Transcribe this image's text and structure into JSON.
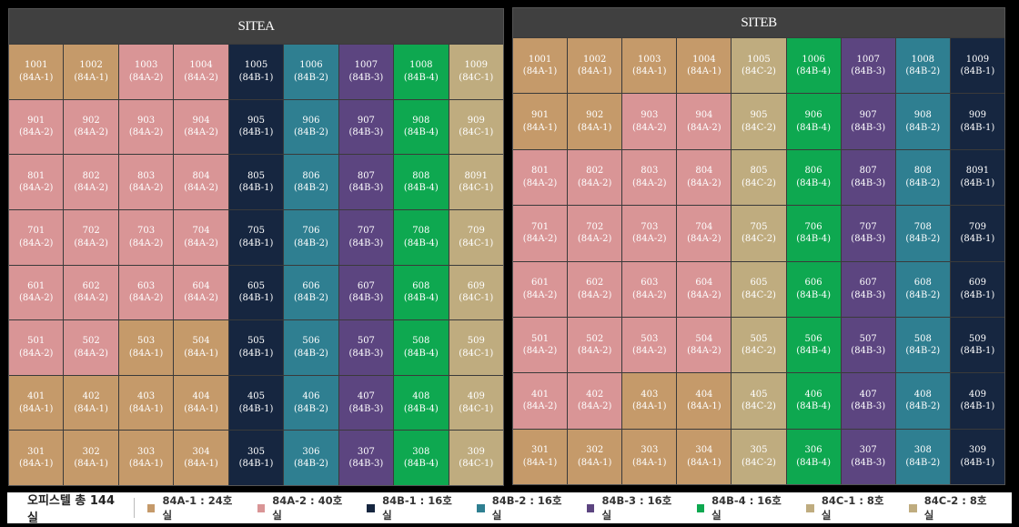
{
  "types": {
    "84A-1": "#c59a6a",
    "84A-2": "#d99596",
    "84B-1": "#162640",
    "84B-2": "#2f7f91",
    "84B-3": "#5c4580",
    "84B-4": "#0ea850",
    "84C-1": "#bfac7f",
    "84C-2": "#bfac7f"
  },
  "siteA": {
    "title": "SITEA",
    "rows": [
      [
        [
          "1001",
          "84A-1"
        ],
        [
          "1002",
          "84A-1"
        ],
        [
          "1003",
          "84A-2"
        ],
        [
          "1004",
          "84A-2"
        ],
        [
          "1005",
          "84B-1"
        ],
        [
          "1006",
          "84B-2"
        ],
        [
          "1007",
          "84B-3"
        ],
        [
          "1008",
          "84B-4"
        ],
        [
          "1009",
          "84C-1"
        ]
      ],
      [
        [
          "901",
          "84A-2"
        ],
        [
          "902",
          "84A-2"
        ],
        [
          "903",
          "84A-2"
        ],
        [
          "904",
          "84A-2"
        ],
        [
          "905",
          "84B-1"
        ],
        [
          "906",
          "84B-2"
        ],
        [
          "907",
          "84B-3"
        ],
        [
          "908",
          "84B-4"
        ],
        [
          "909",
          "84C-1"
        ]
      ],
      [
        [
          "801",
          "84A-2"
        ],
        [
          "802",
          "84A-2"
        ],
        [
          "803",
          "84A-2"
        ],
        [
          "804",
          "84A-2"
        ],
        [
          "805",
          "84B-1"
        ],
        [
          "806",
          "84B-2"
        ],
        [
          "807",
          "84B-3"
        ],
        [
          "808",
          "84B-4"
        ],
        [
          "8091",
          "84C-1"
        ]
      ],
      [
        [
          "701",
          "84A-2"
        ],
        [
          "702",
          "84A-2"
        ],
        [
          "703",
          "84A-2"
        ],
        [
          "704",
          "84A-2"
        ],
        [
          "705",
          "84B-1"
        ],
        [
          "706",
          "84B-2"
        ],
        [
          "707",
          "84B-3"
        ],
        [
          "708",
          "84B-4"
        ],
        [
          "709",
          "84C-1"
        ]
      ],
      [
        [
          "601",
          "84A-2"
        ],
        [
          "602",
          "84A-2"
        ],
        [
          "603",
          "84A-2"
        ],
        [
          "604",
          "84A-2"
        ],
        [
          "605",
          "84B-1"
        ],
        [
          "606",
          "84B-2"
        ],
        [
          "607",
          "84B-3"
        ],
        [
          "608",
          "84B-4"
        ],
        [
          "609",
          "84C-1"
        ]
      ],
      [
        [
          "501",
          "84A-2"
        ],
        [
          "502",
          "84A-2"
        ],
        [
          "503",
          "84A-1"
        ],
        [
          "504",
          "84A-1"
        ],
        [
          "505",
          "84B-1"
        ],
        [
          "506",
          "84B-2"
        ],
        [
          "507",
          "84B-3"
        ],
        [
          "508",
          "84B-4"
        ],
        [
          "509",
          "84C-1"
        ]
      ],
      [
        [
          "401",
          "84A-1"
        ],
        [
          "402",
          "84A-1"
        ],
        [
          "403",
          "84A-1"
        ],
        [
          "404",
          "84A-1"
        ],
        [
          "405",
          "84B-1"
        ],
        [
          "406",
          "84B-2"
        ],
        [
          "407",
          "84B-3"
        ],
        [
          "408",
          "84B-4"
        ],
        [
          "409",
          "84C-1"
        ]
      ],
      [
        [
          "301",
          "84A-1"
        ],
        [
          "302",
          "84A-1"
        ],
        [
          "303",
          "84A-1"
        ],
        [
          "304",
          "84A-1"
        ],
        [
          "305",
          "84B-1"
        ],
        [
          "306",
          "84B-2"
        ],
        [
          "307",
          "84B-3"
        ],
        [
          "308",
          "84B-4"
        ],
        [
          "309",
          "84C-1"
        ]
      ]
    ]
  },
  "siteB": {
    "title": "SITEB",
    "rows": [
      [
        [
          "1001",
          "84A-1"
        ],
        [
          "1002",
          "84A-1"
        ],
        [
          "1003",
          "84A-1"
        ],
        [
          "1004",
          "84A-1"
        ],
        [
          "1005",
          "84C-2"
        ],
        [
          "1006",
          "84B-4"
        ],
        [
          "1007",
          "84B-3"
        ],
        [
          "1008",
          "84B-2"
        ],
        [
          "1009",
          "84B-1"
        ]
      ],
      [
        [
          "901",
          "84A-1"
        ],
        [
          "902",
          "84A-1"
        ],
        [
          "903",
          "84A-2"
        ],
        [
          "904",
          "84A-2"
        ],
        [
          "905",
          "84C-2"
        ],
        [
          "906",
          "84B-4"
        ],
        [
          "907",
          "84B-3"
        ],
        [
          "908",
          "84B-2"
        ],
        [
          "909",
          "84B-1"
        ]
      ],
      [
        [
          "801",
          "84A-2"
        ],
        [
          "802",
          "84A-2"
        ],
        [
          "803",
          "84A-2"
        ],
        [
          "804",
          "84A-2"
        ],
        [
          "805",
          "84C-2"
        ],
        [
          "806",
          "84B-4"
        ],
        [
          "807",
          "84B-3"
        ],
        [
          "808",
          "84B-2"
        ],
        [
          "8091",
          "84B-1"
        ]
      ],
      [
        [
          "701",
          "84A-2"
        ],
        [
          "702",
          "84A-2"
        ],
        [
          "703",
          "84A-2"
        ],
        [
          "704",
          "84A-2"
        ],
        [
          "705",
          "84C-2"
        ],
        [
          "706",
          "84B-4"
        ],
        [
          "707",
          "84B-3"
        ],
        [
          "708",
          "84B-2"
        ],
        [
          "709",
          "84B-1"
        ]
      ],
      [
        [
          "601",
          "84A-2"
        ],
        [
          "602",
          "84A-2"
        ],
        [
          "603",
          "84A-2"
        ],
        [
          "604",
          "84A-2"
        ],
        [
          "605",
          "84C-2"
        ],
        [
          "606",
          "84B-4"
        ],
        [
          "607",
          "84B-3"
        ],
        [
          "608",
          "84B-2"
        ],
        [
          "609",
          "84B-1"
        ]
      ],
      [
        [
          "501",
          "84A-2"
        ],
        [
          "502",
          "84A-2"
        ],
        [
          "503",
          "84A-2"
        ],
        [
          "504",
          "84A-2"
        ],
        [
          "505",
          "84C-2"
        ],
        [
          "506",
          "84B-4"
        ],
        [
          "507",
          "84B-3"
        ],
        [
          "508",
          "84B-2"
        ],
        [
          "509",
          "84B-1"
        ]
      ],
      [
        [
          "401",
          "84A-2"
        ],
        [
          "402",
          "84A-2"
        ],
        [
          "403",
          "84A-1"
        ],
        [
          "404",
          "84A-1"
        ],
        [
          "405",
          "84C-2"
        ],
        [
          "406",
          "84B-4"
        ],
        [
          "407",
          "84B-3"
        ],
        [
          "408",
          "84B-2"
        ],
        [
          "409",
          "84B-1"
        ]
      ],
      [
        [
          "301",
          "84A-1"
        ],
        [
          "302",
          "84A-1"
        ],
        [
          "303",
          "84A-1"
        ],
        [
          "304",
          "84A-1"
        ],
        [
          "305",
          "84C-2"
        ],
        [
          "306",
          "84B-4"
        ],
        [
          "307",
          "84B-3"
        ],
        [
          "308",
          "84B-2"
        ],
        [
          "309",
          "84B-1"
        ]
      ]
    ]
  },
  "legend": {
    "title": "오피스텔 총 144실",
    "items": [
      {
        "type": "84A-1",
        "label": "84A-1 : 24호실"
      },
      {
        "type": "84A-2",
        "label": "84A-2 : 40호실"
      },
      {
        "type": "84B-1",
        "label": "84B-1 : 16호실"
      },
      {
        "type": "84B-2",
        "label": "84B-2 : 16호실"
      },
      {
        "type": "84B-3",
        "label": "84B-3 : 16호실"
      },
      {
        "type": "84B-4",
        "label": "84B-4 : 16호실"
      },
      {
        "type": "84C-1",
        "label": "84C-1 : 8호실"
      },
      {
        "type": "84C-2",
        "label": "84C-2 : 8호실"
      }
    ]
  }
}
